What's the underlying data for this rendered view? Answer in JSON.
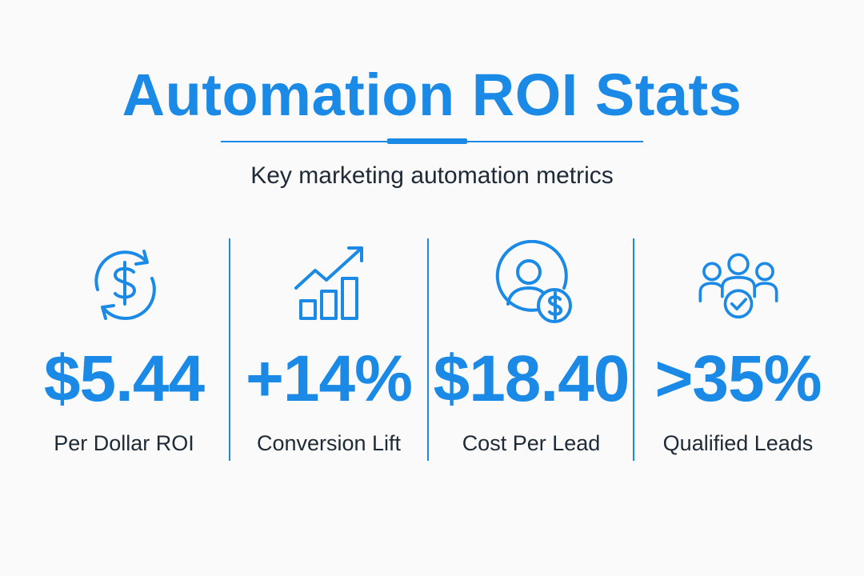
{
  "header": {
    "title": "Automation ROI Stats",
    "subtitle": "Key marketing automation metrics"
  },
  "colors": {
    "accent": "#1a8ae6",
    "text": "#1e2a36",
    "background": "#fafafa"
  },
  "stats": [
    {
      "icon": "dollar-cycle-icon",
      "value": "$5.44",
      "label": "Per Dollar ROI"
    },
    {
      "icon": "growth-chart-icon",
      "value": "+14%",
      "label": "Conversion Lift"
    },
    {
      "icon": "user-cost-icon",
      "value": "$18.40",
      "label": "Cost Per Lead"
    },
    {
      "icon": "qualified-group-icon",
      "value": ">35%",
      "label": "Qualified Leads"
    }
  ]
}
